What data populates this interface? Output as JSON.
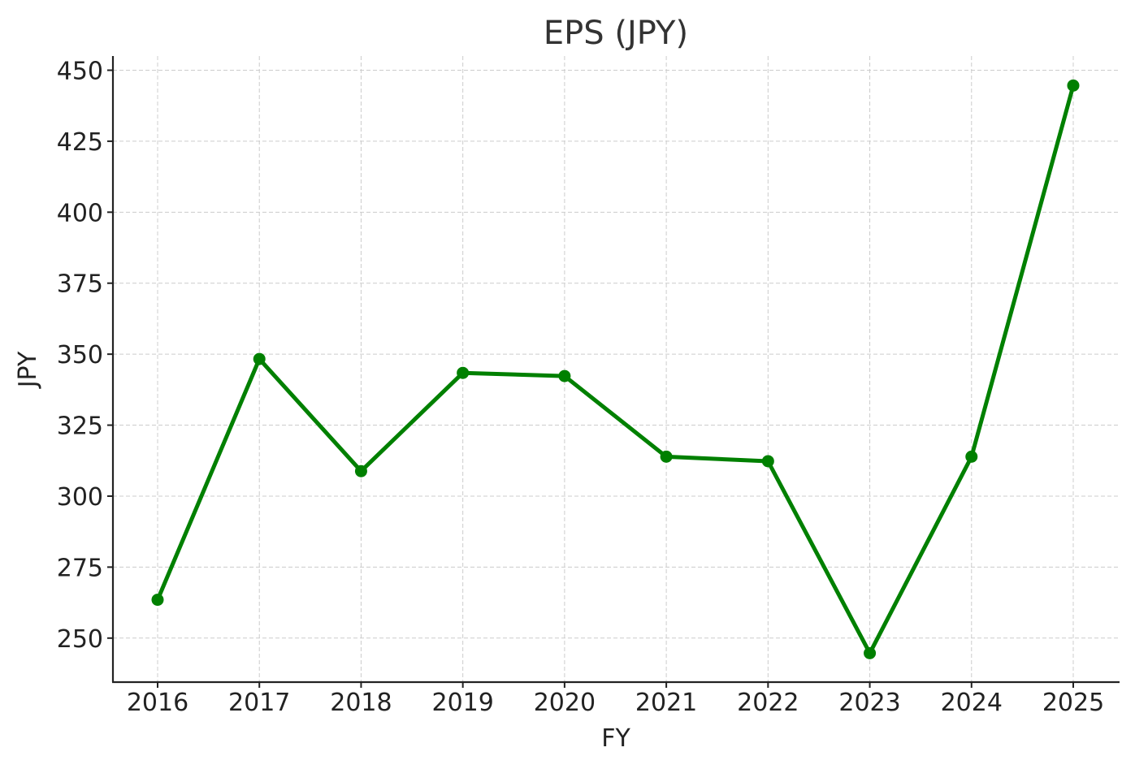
{
  "chart_data": {
    "type": "line",
    "title": "EPS (JPY)",
    "xlabel": "FY",
    "ylabel": "JPY",
    "x": [
      "2016",
      "2017",
      "2018",
      "2019",
      "2020",
      "2021",
      "2022",
      "2023",
      "2024",
      "2025"
    ],
    "series": [
      {
        "values": [
          263.5,
          348.3,
          308.8,
          343.4,
          342.3,
          313.9,
          312.3,
          244.7,
          313.9,
          444.6
        ],
        "color": "#008000"
      }
    ],
    "yticks": [
      250,
      275,
      300,
      325,
      350,
      375,
      400,
      425,
      450
    ],
    "ylim": [
      234.5,
      455
    ],
    "grid": true,
    "marker": "circle"
  }
}
